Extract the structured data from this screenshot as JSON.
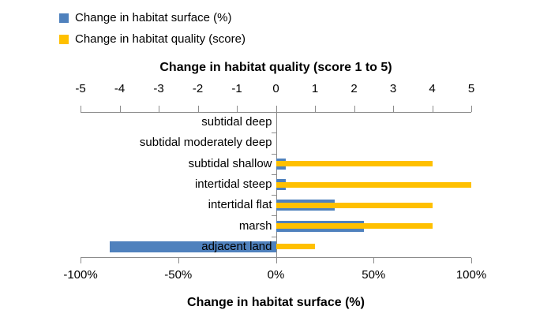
{
  "legend": {
    "items": [
      {
        "label": "Change in habitat surface (%)",
        "color": "#4f81bd",
        "icon": "blue-square"
      },
      {
        "label": "Change in habitat quality (score)",
        "color": "#ffc000",
        "icon": "yellow-square"
      }
    ]
  },
  "chart_data": {
    "type": "bar",
    "orientation": "horizontal",
    "grid": "off",
    "legend_position": "top-left",
    "categories": [
      "subtidal deep",
      "subtidal moderately deep",
      "subtidal shallow",
      "intertidal steep",
      "intertidal flat",
      "marsh",
      "adjacent land"
    ],
    "series": [
      {
        "name": "Change in habitat surface (%)",
        "axis": "bottom",
        "color": "#4f81bd",
        "unit": "%",
        "values": [
          0,
          0,
          5,
          5,
          30,
          45,
          -85
        ]
      },
      {
        "name": "Change in habitat quality (score)",
        "axis": "top",
        "color": "#ffc000",
        "unit": "score",
        "values": [
          0,
          0,
          4,
          5,
          4,
          4,
          1
        ]
      }
    ],
    "top_axis": {
      "title": "Change in habitat quality (score 1 to 5)",
      "min": -5,
      "max": 5,
      "ticks": [
        -5,
        -4,
        -3,
        -2,
        -1,
        0,
        1,
        2,
        3,
        4,
        5
      ],
      "tick_labels": [
        "-5",
        "-4",
        "-3",
        "-2",
        "-1",
        "0",
        "1",
        "2",
        "3",
        "4",
        "5"
      ]
    },
    "bottom_axis": {
      "title": "Change in habitat surface (%)",
      "min": -100,
      "max": 100,
      "ticks": [
        -100,
        -50,
        0,
        50,
        100
      ],
      "tick_labels": [
        "-100%",
        "-50%",
        "0%",
        "50%",
        "100%"
      ]
    },
    "colors": {
      "axis_line": "#8c8c8c",
      "text": "#000000"
    }
  }
}
